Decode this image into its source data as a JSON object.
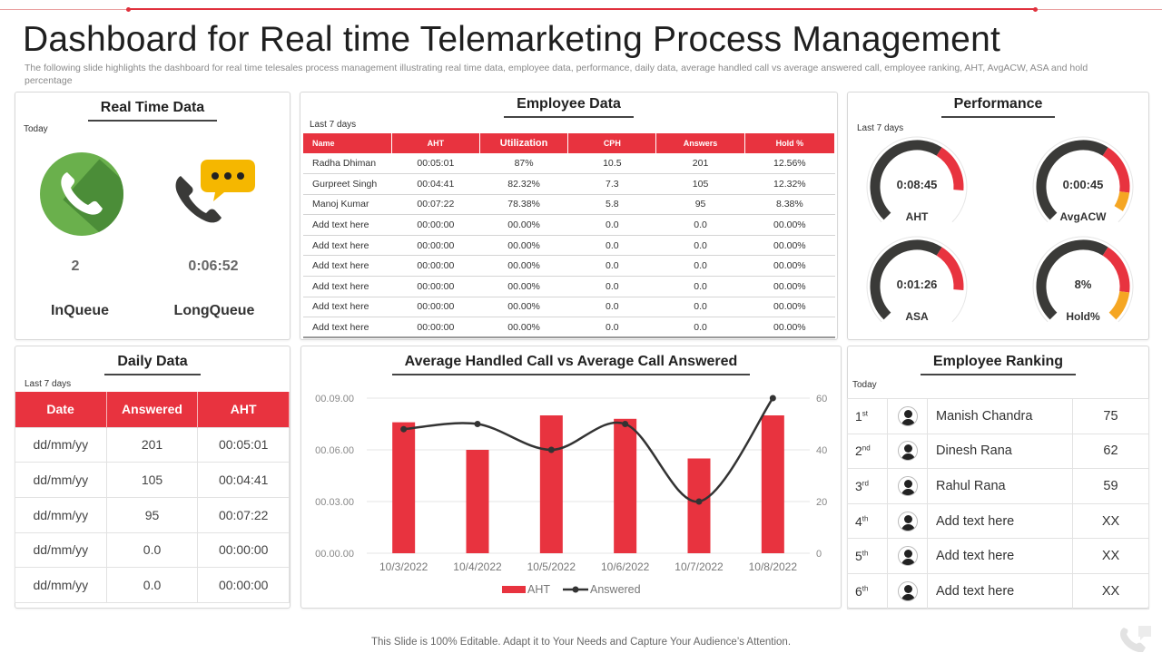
{
  "title": "Dashboard for Real time Telemarketing Process Management",
  "subtitle": "The following slide highlights the dashboard for real time telesales process management illustrating real time data, employee data, performance, daily data, average handled call vs average answered call, employee ranking, AHT, AvgACW,  ASA  and hold percentage",
  "colors": {
    "accent": "#e8333f",
    "green": "#6ab04c",
    "dark": "#3a3a38",
    "orange": "#f5a623"
  },
  "real_time": {
    "title": "Real Time Data",
    "period": "Today",
    "items": [
      {
        "value": "2",
        "label": "InQueue",
        "icon": "green-phone-icon"
      },
      {
        "value": "0:06:52",
        "label": "LongQueue",
        "icon": "phone-chat-bubble-icon"
      }
    ]
  },
  "employee_data": {
    "title": "Employee Data",
    "period": "Last 7 days",
    "columns": [
      "Name",
      "AHT",
      "Utilization",
      "CPH",
      "Answers",
      "Hold %"
    ],
    "rows": [
      [
        "Radha Dhiman",
        "00:05:01",
        "87%",
        "10.5",
        "201",
        "12.56%"
      ],
      [
        "Gurpreet Singh",
        "00:04:41",
        "82.32%",
        "7.3",
        "105",
        "12.32%"
      ],
      [
        "Manoj Kumar",
        "00:07:22",
        "78.38%",
        "5.8",
        "95",
        "8.38%"
      ],
      [
        "Add text here",
        "00:00:00",
        "00.00%",
        "0.0",
        "0.0",
        "00.00%"
      ],
      [
        "Add text here",
        "00:00:00",
        "00.00%",
        "0.0",
        "0.0",
        "00.00%"
      ],
      [
        "Add text here",
        "00:00:00",
        "00.00%",
        "0.0",
        "0.0",
        "00.00%"
      ],
      [
        "Add text here",
        "00:00:00",
        "00.00%",
        "0.0",
        "0.0",
        "00.00%"
      ],
      [
        "Add text here",
        "00:00:00",
        "00.00%",
        "0.0",
        "0.0",
        "00.00%"
      ],
      [
        "Add text here",
        "00:00:00",
        "00.00%",
        "0.0",
        "0.0",
        "00.00%"
      ]
    ]
  },
  "performance": {
    "title": "Performance",
    "period": "Last 7 days",
    "gauges": [
      {
        "value": "0:08:45",
        "label": "AHT",
        "level": 0.85,
        "segments": [
          "red"
        ]
      },
      {
        "value": "0:00:45",
        "label": "AvgACW",
        "level": 0.95,
        "segments": [
          "red",
          "orange"
        ]
      },
      {
        "value": "0:01:26",
        "label": "ASA",
        "level": 0.85,
        "segments": [
          "red"
        ]
      },
      {
        "value": "8%",
        "label": "Hold%",
        "level": 1.0,
        "segments": [
          "red",
          "orange"
        ]
      }
    ]
  },
  "daily_data": {
    "title": "Daily Data",
    "period": "Last 7 days",
    "columns": [
      "Date",
      "Answered",
      "AHT"
    ],
    "rows": [
      [
        "dd/mm/yy",
        "201",
        "00:05:01"
      ],
      [
        "dd/mm/yy",
        "105",
        "00:04:41"
      ],
      [
        "dd/mm/yy",
        "95",
        "00:07:22"
      ],
      [
        "dd/mm/yy",
        "0.0",
        "00:00:00"
      ],
      [
        "dd/mm/yy",
        "0.0",
        "00:00:00"
      ]
    ]
  },
  "chart_data": {
    "type": "bar",
    "title": "Average Handled Call vs Average Call Answered",
    "categories": [
      "10/3/2022",
      "10/4/2022",
      "10/5/2022",
      "10/6/2022",
      "10/7/2022",
      "10/8/2022"
    ],
    "series": [
      {
        "name": "AHT",
        "type": "bar",
        "axis": "left",
        "values": [
          7.6,
          6.0,
          8.0,
          7.8,
          5.5,
          8.0
        ],
        "color": "#e8333f"
      },
      {
        "name": "Answered",
        "type": "line",
        "axis": "right",
        "values": [
          48,
          50,
          40,
          50,
          20,
          60
        ],
        "color": "#333333"
      }
    ],
    "yticks_left": [
      "00.00.00",
      "00.03.00",
      "00.06.00",
      "00.09.00"
    ],
    "yticks_right": [
      "0",
      "20",
      "40",
      "60"
    ],
    "ylim_left": [
      0,
      9
    ],
    "ylim_right": [
      0,
      60
    ],
    "legend": "bottom"
  },
  "ranking": {
    "title": "Employee Ranking",
    "period": "Today",
    "rows": [
      {
        "pos": "1",
        "suffix": "st",
        "name": "Manish Chandra",
        "score": "75"
      },
      {
        "pos": "2",
        "suffix": "nd",
        "name": "Dinesh Rana",
        "score": "62"
      },
      {
        "pos": "3",
        "suffix": "rd",
        "name": "Rahul Rana",
        "score": "59"
      },
      {
        "pos": "4",
        "suffix": "th",
        "name": "Add text here",
        "score": "XX"
      },
      {
        "pos": "5",
        "suffix": "th",
        "name": "Add text here",
        "score": "XX"
      },
      {
        "pos": "6",
        "suffix": "th",
        "name": "Add text here",
        "score": "XX"
      }
    ]
  },
  "footer": "This Slide is 100% Editable. Adapt it to Your Needs and Capture Your Audience’s Attention."
}
